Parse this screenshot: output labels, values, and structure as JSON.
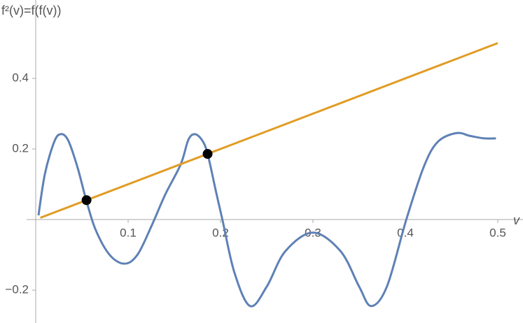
{
  "chart_data": {
    "type": "line",
    "y_label": "f²(v)=f(f(v))",
    "x_label": "v",
    "xlim": [
      0,
      0.525
    ],
    "ylim": [
      -0.293,
      0.622
    ],
    "xticks": [
      0.1,
      0.2,
      0.3,
      0.4,
      0.5
    ],
    "yticks": [
      {
        "value": -0.2,
        "label": "−0.2"
      },
      0.2,
      0.4
    ],
    "series": [
      {
        "color": "#5e81b5",
        "smooth": true,
        "x": [
          0.003,
          0.01,
          0.02,
          0.027,
          0.035,
          0.045,
          0.055,
          0.065,
          0.08,
          0.096,
          0.11,
          0.125,
          0.14,
          0.157,
          0.165,
          0.172,
          0.18,
          0.186,
          0.195,
          0.202,
          0.215,
          0.232,
          0.25,
          0.27,
          0.3,
          0.33,
          0.35,
          0.363,
          0.38,
          0.401,
          0.42,
          0.435,
          0.455,
          0.47,
          0.485,
          0.498
        ],
        "values": [
          0.012,
          0.13,
          0.22,
          0.242,
          0.225,
          0.15,
          0.052,
          -0.03,
          -0.1,
          -0.125,
          -0.1,
          -0.02,
          0.07,
          0.157,
          0.225,
          0.242,
          0.225,
          0.186,
          0.08,
          0.0,
          -0.15,
          -0.245,
          -0.19,
          -0.09,
          -0.037,
          -0.09,
          -0.19,
          -0.245,
          -0.19,
          0.0,
          0.15,
          0.22,
          0.245,
          0.237,
          0.23,
          0.23
        ]
      },
      {
        "color": "#e19c24",
        "smooth": false,
        "x": [
          0.005,
          0.5
        ],
        "values": [
          0.005,
          0.5
        ]
      }
    ],
    "points": {
      "color": "#000000",
      "x": [
        0.055,
        0.186
      ],
      "values": [
        0.055,
        0.186
      ]
    }
  }
}
